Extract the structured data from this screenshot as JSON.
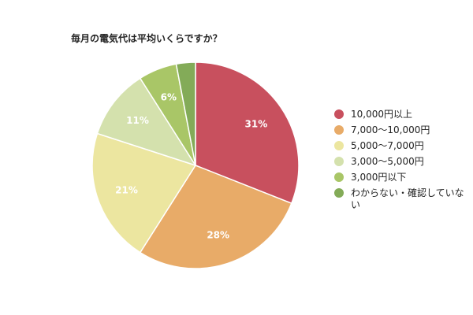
{
  "chart_data": {
    "type": "pie",
    "title": "毎月の電気代は平均いくらですか？",
    "slices": [
      {
        "label": "10,000円以上",
        "value": 31,
        "display": "31%",
        "color": "#c8505e"
      },
      {
        "label": "7,000〜10,000円",
        "value": 28,
        "display": "28%",
        "color": "#e8ab68"
      },
      {
        "label": "5,000〜7,000円",
        "value": 21,
        "display": "21%",
        "color": "#ece6a0"
      },
      {
        "label": "3,000〜5,000円",
        "value": 11,
        "display": "11%",
        "color": "#d4e1ad"
      },
      {
        "label": "3,000円以下",
        "value": 6,
        "display": "6%",
        "color": "#a9c667"
      },
      {
        "label": "わからない・確認していない",
        "value": 3,
        "display": "",
        "color": "#83ab58"
      }
    ],
    "legend_position": "right"
  }
}
